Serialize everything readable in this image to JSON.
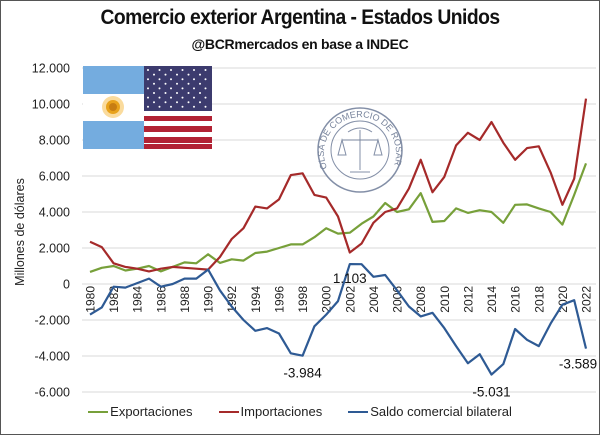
{
  "header": {
    "title": "Comercio exterior Argentina - Estados Unidos",
    "subtitle": "@BCRmercados en base a INDEC"
  },
  "watermark": {
    "seal_text": "BOLSA DE COMERCIO DE ROSARIO",
    "flags": [
      "argentina-flag",
      "usa-flag"
    ]
  },
  "colors": {
    "exports": "#77a03a",
    "imports": "#a52a2a",
    "balance": "#2e5a94",
    "grid": "#d9d9d9"
  },
  "chart_data": {
    "type": "line",
    "title": "Comercio exterior Argentina - Estados Unidos",
    "subtitle": "@BCRmercados en base a INDEC",
    "xlabel": "",
    "ylabel": "Millones de dólares",
    "ylim": [
      -6000,
      12000
    ],
    "yticks": [
      12000,
      10000,
      8000,
      6000,
      4000,
      2000,
      0,
      -2000,
      -4000,
      -6000
    ],
    "ytick_labels": [
      "12.000",
      "10.000",
      "8.000",
      "6.000",
      "4.000",
      "2.000",
      "0",
      "-2.000",
      "-4.000",
      "-6.000"
    ],
    "grid": true,
    "legend": "bottom",
    "x": [
      1980,
      1981,
      1982,
      1983,
      1984,
      1985,
      1986,
      1987,
      1988,
      1989,
      1990,
      1991,
      1992,
      1993,
      1994,
      1995,
      1996,
      1997,
      1998,
      1999,
      2000,
      2001,
      2002,
      2003,
      2004,
      2005,
      2006,
      2007,
      2008,
      2009,
      2010,
      2011,
      2012,
      2013,
      2014,
      2015,
      2016,
      2017,
      2018,
      2019,
      2020,
      2021,
      2022
    ],
    "xtick_labels": [
      "1980",
      "1982",
      "1984",
      "1986",
      "1988",
      "1990",
      "1992",
      "1994",
      "1996",
      "1998",
      "2000",
      "2002",
      "2004",
      "2006",
      "2008",
      "2010",
      "2012",
      "2014",
      "2016",
      "2018",
      "2020",
      "2022"
    ],
    "series": [
      {
        "name": "Exportaciones",
        "values": [
          670,
          900,
          1000,
          750,
          850,
          1000,
          700,
          950,
          1200,
          1150,
          1650,
          1170,
          1370,
          1300,
          1720,
          1800,
          2000,
          2200,
          2200,
          2600,
          3100,
          2800,
          2850,
          3350,
          3750,
          4500,
          4000,
          4150,
          5050,
          3450,
          3500,
          4200,
          3950,
          4100,
          4000,
          3400,
          4400,
          4420,
          4200,
          4000,
          3300,
          4950,
          6700
        ]
      },
      {
        "name": "Importaciones",
        "values": [
          2350,
          2050,
          1150,
          950,
          850,
          700,
          850,
          950,
          900,
          850,
          800,
          1500,
          2500,
          3100,
          4300,
          4200,
          4700,
          6050,
          6150,
          4950,
          4800,
          3750,
          1750,
          2250,
          3400,
          4000,
          4200,
          5300,
          6900,
          5100,
          5950,
          7700,
          8400,
          8000,
          9000,
          7850,
          6900,
          7550,
          7650,
          6200,
          4400,
          5850,
          10300
        ]
      },
      {
        "name": "Saldo comercial bilateral",
        "values": [
          -1700,
          -1300,
          -150,
          -200,
          50,
          300,
          -150,
          0,
          300,
          300,
          800,
          -350,
          -1250,
          -2000,
          -2600,
          -2450,
          -2750,
          -3850,
          -3984,
          -2350,
          -1700,
          -950,
          1103,
          1100,
          400,
          500,
          -350,
          -1250,
          -1800,
          -1600,
          -2450,
          -3450,
          -4400,
          -3900,
          -5031,
          -4450,
          -2500,
          -3100,
          -3450,
          -2200,
          -1150,
          -900,
          -3589
        ]
      }
    ],
    "annotations": [
      {
        "label": "-3.984",
        "year": 1998,
        "series": "Saldo comercial bilateral",
        "value": -3984
      },
      {
        "label": "1.103",
        "year": 2002,
        "series": "Saldo comercial bilateral",
        "value": 1103
      },
      {
        "label": "-5.031",
        "year": 2014,
        "series": "Saldo comercial bilateral",
        "value": -5031
      },
      {
        "label": "-3.589",
        "year": 2022,
        "series": "Saldo comercial bilateral",
        "value": -3589
      }
    ]
  },
  "legend": {
    "items": [
      {
        "label": "Exportaciones"
      },
      {
        "label": "Importaciones"
      },
      {
        "label": "Saldo comercial bilateral"
      }
    ]
  }
}
